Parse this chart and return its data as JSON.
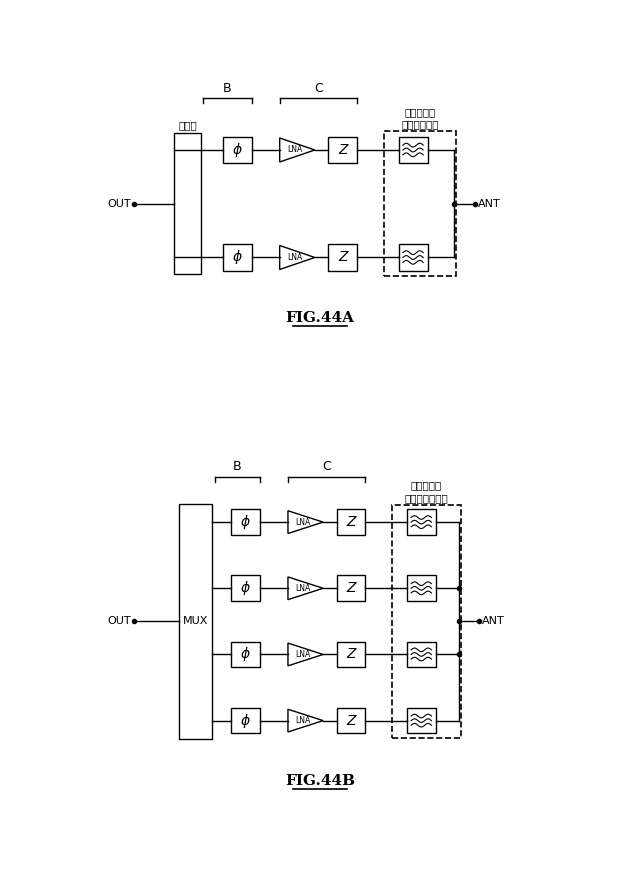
{
  "fig_width": 6.4,
  "fig_height": 8.83,
  "bg_color": "#ffffff",
  "line_color": "#000000",
  "fig44a": {
    "title": "FIG.44A",
    "label_B": "B",
    "label_C": "C",
    "label_filter": "フィルタ／\nダイプレクサ",
    "label_coupler": "結合器",
    "label_OUT": "OUT",
    "label_ANT": "ANT",
    "rows": 2
  },
  "fig44b": {
    "title": "FIG.44B",
    "label_B": "B",
    "label_C": "C",
    "label_filter": "フィルタ／\nマルチプレクサ",
    "label_mux": "MUX",
    "label_OUT": "OUT",
    "label_ANT": "ANT",
    "rows": 4
  }
}
